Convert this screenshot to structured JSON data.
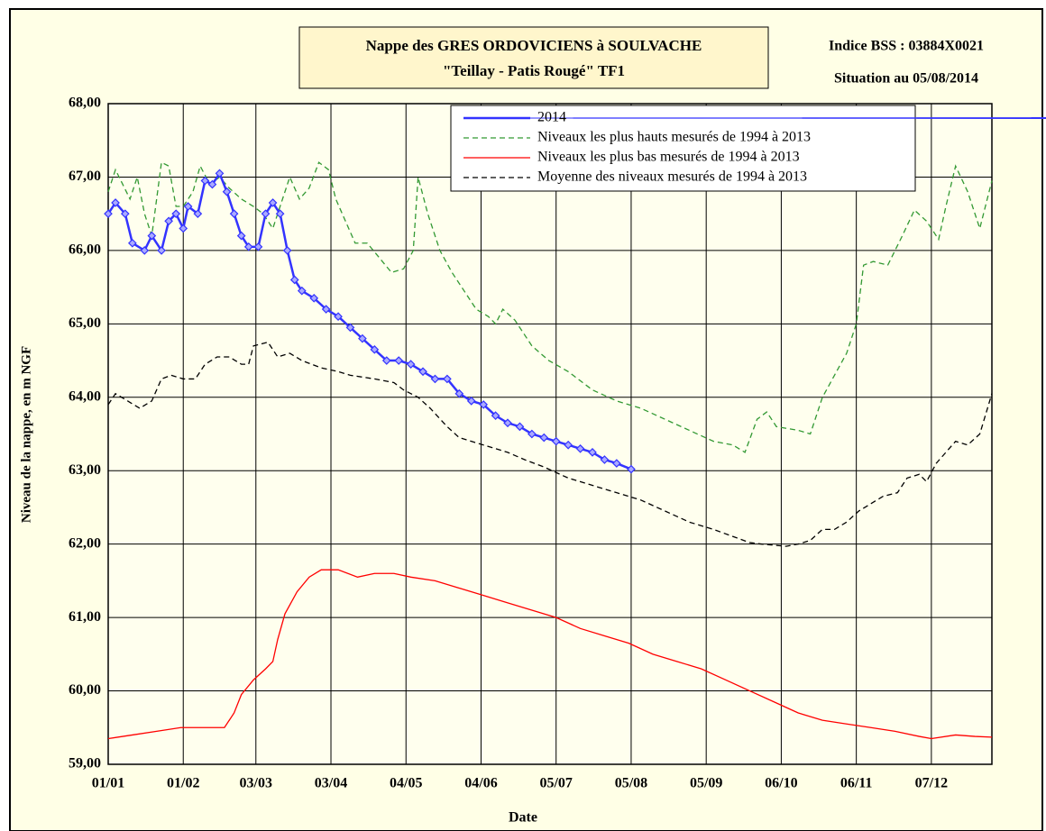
{
  "chart_data": {
    "type": "line",
    "title": "Nappe des GRES ORDOVICIENS à SOULVACHE",
    "subtitle": "\"Teillay - Patis Rougé\" TF1",
    "annotations": [
      "Indice BSS : 03884X0021",
      "Situation au 05/08/2014"
    ],
    "xlabel": "Date",
    "ylabel": "Niveau de la nappe, en m NGF",
    "xlim": [
      0,
      365
    ],
    "ylim": [
      59,
      68
    ],
    "xticks": [
      {
        "value": 0,
        "label": "01/01"
      },
      {
        "value": 31,
        "label": "01/02"
      },
      {
        "value": 61,
        "label": "03/03"
      },
      {
        "value": 92,
        "label": "03/04"
      },
      {
        "value": 123,
        "label": "04/05"
      },
      {
        "value": 154,
        "label": "04/06"
      },
      {
        "value": 185,
        "label": "05/07"
      },
      {
        "value": 216,
        "label": "05/08"
      },
      {
        "value": 247,
        "label": "05/09"
      },
      {
        "value": 278,
        "label": "06/10"
      },
      {
        "value": 309,
        "label": "06/11"
      },
      {
        "value": 340,
        "label": "07/12"
      }
    ],
    "yticks": [
      {
        "value": 59,
        "label": "59,00"
      },
      {
        "value": 60,
        "label": "60,00"
      },
      {
        "value": 61,
        "label": "61,00"
      },
      {
        "value": 62,
        "label": "62,00"
      },
      {
        "value": 63,
        "label": "63,00"
      },
      {
        "value": 64,
        "label": "64,00"
      },
      {
        "value": 65,
        "label": "65,00"
      },
      {
        "value": 66,
        "label": "66,00"
      },
      {
        "value": 67,
        "label": "67,00"
      },
      {
        "value": 68,
        "label": "68,00"
      }
    ],
    "grid": true,
    "legend": "top-right",
    "series": [
      {
        "name": "2014",
        "color": "#3333ff",
        "dash": "solid",
        "markers": true,
        "x": [
          0,
          3,
          7,
          10,
          15,
          18,
          22,
          25,
          28,
          31,
          33,
          37,
          40,
          43,
          46,
          49,
          52,
          55,
          58,
          62,
          65,
          68,
          71,
          74,
          77,
          80,
          85,
          90,
          95,
          100,
          105,
          110,
          115,
          120,
          125,
          130,
          135,
          140,
          145,
          150,
          155,
          160,
          165,
          170,
          175,
          180,
          185,
          190,
          195,
          200,
          205,
          210,
          216
        ],
        "values": [
          66.5,
          66.65,
          66.5,
          66.1,
          66.0,
          66.2,
          66.0,
          66.4,
          66.5,
          66.3,
          66.6,
          66.5,
          66.95,
          66.9,
          67.05,
          66.8,
          66.5,
          66.2,
          66.05,
          66.05,
          66.5,
          66.65,
          66.5,
          66.0,
          65.6,
          65.45,
          65.35,
          65.2,
          65.1,
          64.95,
          64.8,
          64.65,
          64.5,
          64.5,
          64.45,
          64.35,
          64.25,
          64.25,
          64.05,
          63.95,
          63.9,
          63.75,
          63.65,
          63.6,
          63.5,
          63.45,
          63.4,
          63.35,
          63.3,
          63.25,
          63.15,
          63.1,
          63.02
        ]
      },
      {
        "name": "Niveaux les plus hauts mesurés de 1994 à 2013",
        "color": "#339933",
        "dash": "dashed",
        "markers": false,
        "x": [
          0,
          3,
          6,
          9,
          12,
          15,
          18,
          22,
          25,
          28,
          31,
          35,
          38,
          42,
          46,
          50,
          55,
          60,
          64,
          68,
          72,
          75,
          79,
          83,
          87,
          91,
          94,
          98,
          102,
          107,
          112,
          117,
          122,
          126,
          128,
          132,
          137,
          142,
          147,
          152,
          157,
          160,
          163,
          168,
          175,
          182,
          190,
          200,
          210,
          220,
          230,
          240,
          250,
          258,
          263,
          268,
          272,
          276,
          285,
          290,
          295,
          300,
          305,
          309,
          312,
          316,
          322,
          328,
          333,
          338,
          343,
          346,
          350,
          355,
          360,
          365
        ],
        "values": [
          66.8,
          67.1,
          66.9,
          66.7,
          67.0,
          66.5,
          66.2,
          67.2,
          67.15,
          66.6,
          66.6,
          66.8,
          67.15,
          66.9,
          67.0,
          66.85,
          66.7,
          66.6,
          66.5,
          66.3,
          66.7,
          67.0,
          66.7,
          66.85,
          67.2,
          67.1,
          66.7,
          66.4,
          66.1,
          66.1,
          65.9,
          65.7,
          65.75,
          66.0,
          67.0,
          66.5,
          66.0,
          65.7,
          65.45,
          65.2,
          65.1,
          65.0,
          65.2,
          65.05,
          64.7,
          64.5,
          64.35,
          64.1,
          63.95,
          63.85,
          63.7,
          63.55,
          63.4,
          63.35,
          63.25,
          63.7,
          63.8,
          63.6,
          63.55,
          63.5,
          64.0,
          64.3,
          64.6,
          65.0,
          65.8,
          65.85,
          65.8,
          66.2,
          66.55,
          66.4,
          66.15,
          66.6,
          67.15,
          66.8,
          66.3,
          66.95
        ]
      },
      {
        "name": "Niveaux les plus bas mesurés de 1994 à 2013",
        "color": "#ff0000",
        "dash": "solid",
        "markers": false,
        "x": [
          0,
          10,
          20,
          30,
          40,
          48,
          52,
          55,
          60,
          65,
          68,
          70,
          73,
          78,
          83,
          88,
          95,
          103,
          110,
          118,
          125,
          135,
          145,
          155,
          165,
          175,
          185,
          195,
          205,
          215,
          225,
          235,
          245,
          255,
          265,
          275,
          285,
          295,
          305,
          315,
          325,
          335,
          340,
          350,
          358,
          365
        ],
        "values": [
          59.35,
          59.4,
          59.45,
          59.5,
          59.5,
          59.5,
          59.7,
          59.95,
          60.15,
          60.3,
          60.4,
          60.7,
          61.05,
          61.35,
          61.55,
          61.65,
          61.65,
          61.55,
          61.6,
          61.6,
          61.55,
          61.5,
          61.4,
          61.3,
          61.2,
          61.1,
          61.0,
          60.85,
          60.75,
          60.65,
          60.5,
          60.4,
          60.3,
          60.15,
          60.0,
          59.85,
          59.7,
          59.6,
          59.55,
          59.5,
          59.45,
          59.38,
          59.35,
          59.4,
          59.38,
          59.37
        ]
      },
      {
        "name": "Moyenne des niveaux mesurés de 1994 à 2013",
        "color": "#000000",
        "dash": "dashed",
        "markers": false,
        "x": [
          0,
          3,
          8,
          13,
          18,
          22,
          26,
          31,
          36,
          40,
          45,
          50,
          55,
          58,
          60,
          66,
          70,
          75,
          80,
          88,
          95,
          100,
          110,
          118,
          122,
          128,
          133,
          140,
          145,
          150,
          155,
          160,
          165,
          172,
          180,
          190,
          200,
          210,
          220,
          230,
          240,
          250,
          260,
          265,
          270,
          280,
          285,
          290,
          295,
          300,
          305,
          310,
          315,
          320,
          326,
          330,
          335,
          338,
          342,
          346,
          350,
          355,
          360,
          365
        ],
        "values": [
          63.9,
          64.05,
          63.95,
          63.85,
          63.95,
          64.25,
          64.3,
          64.25,
          64.25,
          64.45,
          64.55,
          64.55,
          64.45,
          64.45,
          64.7,
          64.75,
          64.55,
          64.6,
          64.5,
          64.4,
          64.35,
          64.3,
          64.25,
          64.2,
          64.1,
          64.0,
          63.85,
          63.6,
          63.45,
          63.4,
          63.35,
          63.3,
          63.25,
          63.15,
          63.05,
          62.9,
          62.8,
          62.7,
          62.6,
          62.45,
          62.3,
          62.2,
          62.08,
          62.02,
          62.0,
          61.97,
          62.0,
          62.05,
          62.2,
          62.2,
          62.3,
          62.45,
          62.55,
          62.65,
          62.7,
          62.9,
          62.95,
          62.85,
          63.1,
          63.25,
          63.4,
          63.35,
          63.5,
          64.05
        ]
      }
    ]
  }
}
